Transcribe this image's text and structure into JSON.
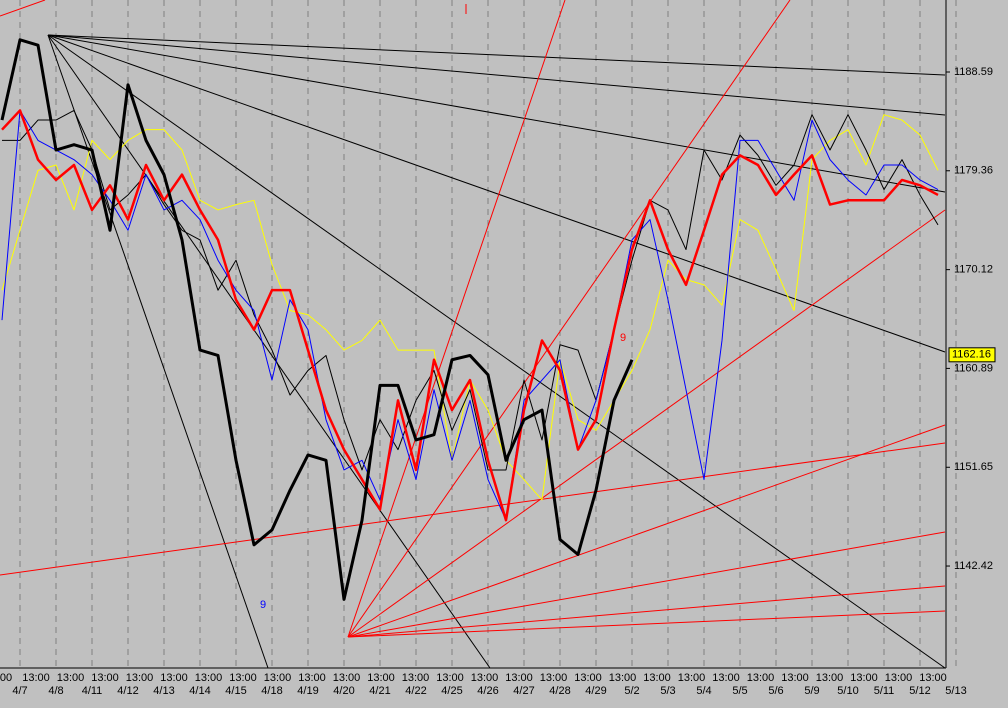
{
  "chart_data": {
    "type": "line",
    "categories": [
      null,
      "4/7",
      null,
      "4/8",
      null,
      "4/11",
      null,
      "4/12",
      null,
      "4/13",
      null,
      "4/14",
      null,
      "4/15",
      null,
      "4/18",
      null,
      "4/19",
      null,
      "4/20",
      null,
      "4/21",
      null,
      "4/22",
      null,
      "4/25",
      null,
      "4/26",
      null,
      "4/27",
      null,
      "4/28",
      null,
      "4/29",
      null,
      "5/2",
      null,
      "5/3",
      null,
      "5/4",
      null,
      "5/5",
      null,
      "5/6",
      null,
      "5/9",
      null,
      "5/10",
      null,
      "5/11",
      null,
      "5/12",
      null,
      "5/13"
    ],
    "time_labels": [
      "00",
      "13:00",
      "13:00",
      "13:00",
      "13:00",
      "13:00",
      "13:00",
      "13:00",
      "13:00",
      "13:00",
      "13:00",
      "13:00",
      "13:00",
      "13:00",
      "13:00",
      "13:00",
      "13:00",
      "13:00",
      "13:00",
      "13:00",
      "13:00",
      "13:00",
      "13:00",
      "13:00",
      "13:00",
      "13:00",
      "13:00",
      "13:00"
    ],
    "ylim": [
      1132.89,
      1195.32
    ],
    "yticks": [
      1188.59,
      1179.36,
      1170.12,
      1160.89,
      1151.65,
      1142.42
    ],
    "last_price": 1162.16,
    "annotations": [
      "9",
      "9"
    ],
    "grid": true,
    "series": [
      {
        "color": "#ffff00",
        "width": 1,
        "values": [
          1168.2,
          1173.8,
          1179.4,
          1179.9,
          1175.7,
          1182.2,
          1180.4,
          1182.2,
          1183.2,
          1183.2,
          1181.3,
          1176.6,
          1175.7,
          1176.2,
          1176.6,
          1170.6,
          1166.3,
          1165.9,
          1164.5,
          1162.6,
          1163.5,
          1165.4,
          1162.6,
          1162.6,
          1162.6,
          1152.3,
          1159.8,
          1157.0,
          1152.3,
          1150.5,
          1148.6,
          1161.7,
          1156.1,
          1155.1,
          1157.9,
          1160.7,
          1164.5,
          1171.0,
          1169.2,
          1168.7,
          1166.8,
          1174.8,
          1173.8,
          1170.1,
          1166.3,
          1180.4,
          1182.2,
          1183.2,
          1179.9,
          1184.6,
          1184.1,
          1182.7,
          1179.4,
          null
        ]
      },
      {
        "color": "#000000",
        "width": 1,
        "values": [
          1182.2,
          1182.2,
          1184.1,
          1184.1,
          1185.0,
          1181.3,
          1175.7,
          1177.1,
          1179.0,
          1176.2,
          1173.8,
          1172.9,
          1168.2,
          1171.0,
          1165.9,
          1162.6,
          1158.4,
          1160.7,
          1162.1,
          1156.1,
          1151.4,
          1156.1,
          1153.3,
          1157.9,
          1160.7,
          1155.1,
          1158.9,
          1151.4,
          1151.4,
          1159.8,
          1154.2,
          1163.1,
          1162.6,
          1157.9,
          1164.5,
          1171.0,
          1176.6,
          1175.7,
          1172.0,
          1181.3,
          1178.5,
          1182.7,
          1180.8,
          1178.0,
          1179.9,
          1184.6,
          1181.3,
          1184.6,
          1181.3,
          1177.6,
          1180.4,
          1177.1,
          1174.3,
          null
        ]
      },
      {
        "color": "#0000ff",
        "width": 1,
        "values": [
          1165.4,
          1185.0,
          1182.2,
          1181.3,
          1180.4,
          1179.0,
          1176.6,
          1173.8,
          1179.0,
          1175.7,
          1176.6,
          1174.8,
          1171.0,
          1168.2,
          1166.3,
          1159.8,
          1167.3,
          1164.5,
          1156.1,
          1151.4,
          1152.3,
          1148.6,
          1156.1,
          1150.5,
          1158.9,
          1152.3,
          1157.9,
          1150.5,
          1146.7,
          1157.9,
          1159.8,
          1161.7,
          1153.3,
          1157.9,
          1164.5,
          1172.9,
          1174.8,
          1167.3,
          1158.9,
          1150.5,
          1163.5,
          1182.2,
          1182.2,
          1179.4,
          1176.6,
          1184.1,
          1180.4,
          1178.5,
          1177.1,
          1179.9,
          1179.9,
          1178.5,
          1177.6,
          null
        ]
      },
      {
        "color": "#ff0000",
        "width": 2.5,
        "values": [
          1183.2,
          1185.0,
          1180.4,
          1178.5,
          1179.9,
          1175.7,
          1178.0,
          1174.8,
          1179.9,
          1176.6,
          1179.0,
          1175.7,
          1172.9,
          1167.3,
          1164.5,
          1168.2,
          1168.2,
          1162.6,
          1157.0,
          1153.3,
          1150.5,
          1147.7,
          1157.9,
          1151.4,
          1161.7,
          1157.0,
          1159.8,
          1152.3,
          1146.7,
          1157.0,
          1163.5,
          1160.7,
          1153.3,
          1156.1,
          1164.5,
          1172.0,
          1176.6,
          1172.0,
          1168.7,
          1173.8,
          1179.0,
          1180.8,
          1179.9,
          1177.1,
          1179.0,
          1180.8,
          1176.2,
          1176.6,
          1176.6,
          1176.6,
          1178.5,
          1178.0,
          1177.1,
          null
        ]
      },
      {
        "color": "#000000",
        "width": 3,
        "values": [
          1184.1,
          1191.6,
          1191.1,
          1181.3,
          1181.8,
          1181.3,
          1173.8,
          1187.4,
          1182.2,
          1179.0,
          1172.9,
          1162.6,
          1162.1,
          1152.3,
          1144.4,
          1145.8,
          1149.5,
          1152.8,
          1152.3,
          1139.3,
          1146.7,
          1159.3,
          1159.3,
          1154.2,
          1154.7,
          1161.7,
          1162.1,
          1160.3,
          1152.3,
          1156.1,
          1157.0,
          1144.9,
          1143.5,
          1149.5,
          1157.9,
          1161.7,
          null,
          null,
          null,
          null,
          null,
          null,
          null,
          null,
          null,
          null,
          null,
          null,
          null,
          null,
          null,
          null,
          null,
          null
        ]
      }
    ]
  }
}
